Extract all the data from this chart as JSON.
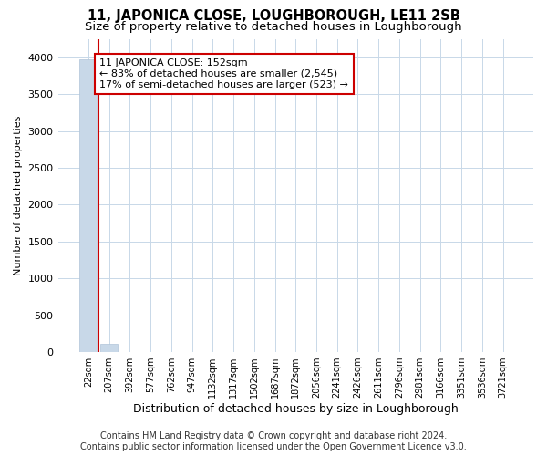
{
  "title_main": "11, JAPONICA CLOSE, LOUGHBOROUGH, LE11 2SB",
  "title_sub": "Size of property relative to detached houses in Loughborough",
  "xlabel": "Distribution of detached houses by size in Loughborough",
  "ylabel": "Number of detached properties",
  "categories": [
    "22sqm",
    "207sqm",
    "392sqm",
    "577sqm",
    "762sqm",
    "947sqm",
    "1132sqm",
    "1317sqm",
    "1502sqm",
    "1687sqm",
    "1872sqm",
    "2056sqm",
    "2241sqm",
    "2426sqm",
    "2611sqm",
    "2796sqm",
    "2981sqm",
    "3166sqm",
    "3351sqm",
    "3536sqm",
    "3721sqm"
  ],
  "values": [
    3970,
    115,
    0,
    0,
    0,
    0,
    0,
    0,
    0,
    0,
    0,
    0,
    0,
    0,
    0,
    0,
    0,
    0,
    0,
    0,
    0
  ],
  "bar_color": "#c8d8e8",
  "bar_edge_color": "#b0c4d8",
  "property_line_color": "#cc0000",
  "annotation_line1": "11 JAPONICA CLOSE: 152sqm",
  "annotation_line2": "← 83% of detached houses are smaller (2,545)",
  "annotation_line3": "17% of semi-detached houses are larger (523) →",
  "annotation_box_color": "#ffffff",
  "annotation_box_edge_color": "#cc0000",
  "ylim": [
    0,
    4250
  ],
  "yticks": [
    0,
    500,
    1000,
    1500,
    2000,
    2500,
    3000,
    3500,
    4000
  ],
  "grid_color": "#c8d8e8",
  "background_color": "#ffffff",
  "footer_line1": "Contains HM Land Registry data © Crown copyright and database right 2024.",
  "footer_line2": "Contains public sector information licensed under the Open Government Licence v3.0.",
  "title_fontsize": 10.5,
  "subtitle_fontsize": 9.5,
  "annotation_fontsize": 8,
  "footer_fontsize": 7,
  "ylabel_fontsize": 8,
  "xlabel_fontsize": 9
}
